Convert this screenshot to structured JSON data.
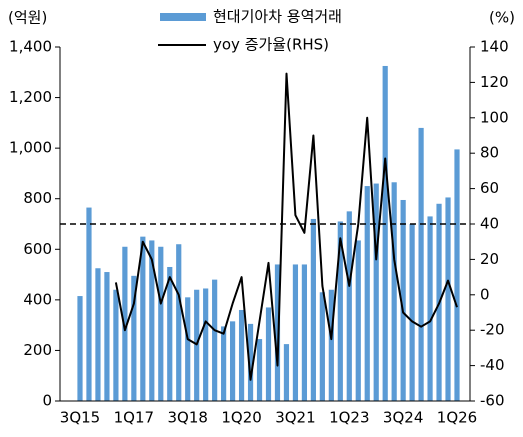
{
  "chart_data": {
    "type": "bar-line",
    "y_unit_label": "(억원)",
    "y2_unit_label": "(%)",
    "categories": [
      "3Q15",
      null,
      null,
      null,
      null,
      null,
      "1Q17",
      null,
      null,
      null,
      null,
      null,
      "3Q18",
      null,
      null,
      null,
      null,
      null,
      "1Q20",
      null,
      null,
      null,
      null,
      null,
      "3Q21",
      null,
      null,
      null,
      null,
      null,
      "1Q23",
      null,
      null,
      null,
      null,
      null,
      "3Q24",
      null,
      null,
      null,
      null,
      null,
      "1Q26"
    ],
    "series": [
      {
        "name": "현대기아차 용역거래",
        "type": "bar",
        "color": "#5b9bd5",
        "values": [
          415,
          765,
          525,
          510,
          440,
          610,
          495,
          650,
          635,
          610,
          530,
          620,
          410,
          440,
          445,
          480,
          295,
          315,
          360,
          305,
          245,
          370,
          540,
          225,
          540,
          540,
          720,
          430,
          440,
          710,
          750,
          635,
          850,
          860,
          1325,
          865,
          795,
          700,
          1080,
          730,
          780,
          805,
          995
        ]
      },
      {
        "name": "yoy 증가율(RHS)",
        "type": "line",
        "color": "#000000",
        "axis": "y2",
        "values": [
          null,
          null,
          null,
          null,
          7,
          -20,
          -5,
          30,
          20,
          -5,
          10,
          0,
          -25,
          -28,
          -15,
          -20,
          -22,
          -5,
          10,
          -48,
          -15,
          18,
          -40,
          125,
          45,
          35,
          90,
          5,
          -25,
          32,
          5,
          40,
          100,
          20,
          77,
          20,
          -10,
          -15,
          -18,
          -15,
          -5,
          8,
          -7
        ]
      }
    ],
    "ylim": [
      0,
      1400
    ],
    "yticks": [
      0,
      200,
      400,
      600,
      800,
      {
        "value": 1000,
        "label": "1,000"
      },
      {
        "value": 1200,
        "label": "1,200"
      },
      {
        "value": 1400,
        "label": "1,400"
      }
    ],
    "y2lim": [
      -60,
      140
    ],
    "y2ticks": [
      -60,
      -40,
      -20,
      0,
      20,
      40,
      60,
      80,
      100,
      120,
      140
    ],
    "reference_line_y2": 40
  }
}
